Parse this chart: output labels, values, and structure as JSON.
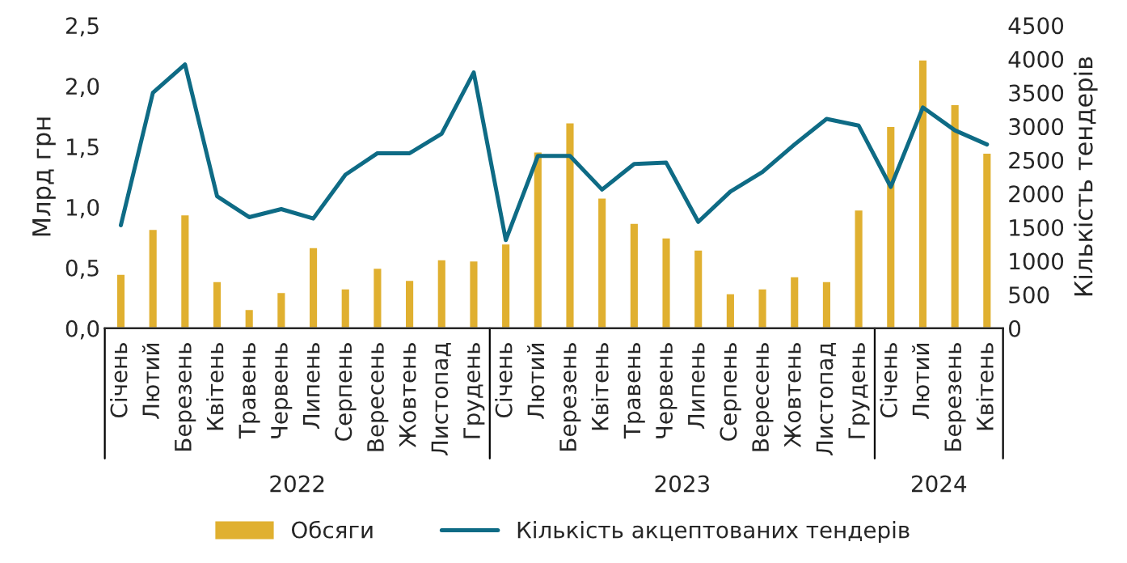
{
  "chart_data": {
    "type": "bar",
    "categories": [
      "Січень",
      "Лютий",
      "Березень",
      "Квітень",
      "Травень",
      "Червень",
      "Липень",
      "Серпень",
      "Вересень",
      "Жовтень",
      "Листопад",
      "Грудень",
      "Січень",
      "Лютий",
      "Березень",
      "Квітень",
      "Травень",
      "Червень",
      "Липень",
      "Серпень",
      "Вересень",
      "Жовтень",
      "Листопад",
      "Грудень",
      "Січень",
      "Лютий",
      "Березень",
      "Квітень"
    ],
    "series": [
      {
        "name": "Обсяги",
        "color": "#e0b030",
        "values": [
          0.45,
          0.82,
          0.94,
          0.39,
          0.16,
          0.3,
          0.67,
          0.33,
          0.5,
          0.4,
          0.57,
          0.56,
          0.7,
          1.46,
          1.7,
          1.08,
          0.87,
          0.75,
          0.65,
          0.29,
          0.33,
          0.43,
          0.39,
          0.98,
          1.67,
          2.22,
          1.85,
          1.45
        ]
      },
      {
        "name": "Кількість акцептованих тендерів",
        "type": "line",
        "axis": "y2",
        "color": "#0e6b85",
        "values": [
          1530,
          3500,
          3920,
          1960,
          1650,
          1770,
          1630,
          2280,
          2600,
          2600,
          2890,
          3800,
          1310,
          2560,
          2560,
          2060,
          2440,
          2460,
          1580,
          2030,
          2320,
          2730,
          3110,
          3010,
          2100,
          3280,
          2940,
          2730
        ]
      }
    ],
    "ylabel": "Млрд грн",
    "y2label": "Кількість тендерів",
    "ylim": [
      0,
      2.5
    ],
    "yticks": [
      {
        "value": 0,
        "label": "0,0"
      },
      {
        "value": 0.5,
        "label": "0,5"
      },
      {
        "value": 1,
        "label": "1,0"
      },
      {
        "value": 1.5,
        "label": "1,5"
      },
      {
        "value": 2,
        "label": "2,0"
      },
      {
        "value": 2.5,
        "label": "2,5"
      }
    ],
    "y2lim": [
      0,
      4500
    ],
    "y2ticks": [
      0,
      500,
      1000,
      1500,
      2000,
      2500,
      3000,
      3500,
      4000,
      4500
    ],
    "annotations": [
      "2022",
      "2023",
      "2024"
    ],
    "grid": false,
    "legend": "bottom",
    "marker": "none",
    "line_style": "solid"
  }
}
